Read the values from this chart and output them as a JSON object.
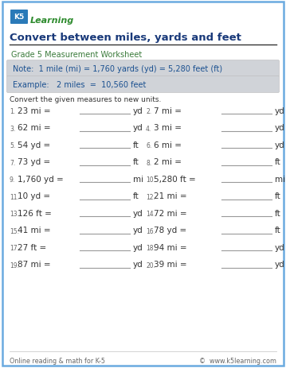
{
  "title": "Convert between miles, yards and feet",
  "subtitle": "Grade 5 Measurement Worksheet",
  "note": "Note:  1 mile (mi) = 1,760 yards (yd) = 5,280 feet (ft)",
  "example": "Example:   2 miles  =  10,560 feet",
  "instruction": "Convert the given measures to new units.",
  "problems": [
    {
      "num": "1.",
      "text": "23 mi =",
      "unit": "yd"
    },
    {
      "num": "2.",
      "text": "7 mi =",
      "unit": "yd"
    },
    {
      "num": "3.",
      "text": "62 mi =",
      "unit": "yd"
    },
    {
      "num": "4.",
      "text": "3 mi =",
      "unit": "yd"
    },
    {
      "num": "5.",
      "text": "54 yd =",
      "unit": "ft"
    },
    {
      "num": "6.",
      "text": "6 mi =",
      "unit": "yd"
    },
    {
      "num": "7.",
      "text": "73 yd =",
      "unit": "ft"
    },
    {
      "num": "8.",
      "text": "2 mi =",
      "unit": "ft"
    },
    {
      "num": "9.",
      "text": "1,760 yd =",
      "unit": "mi"
    },
    {
      "num": "10.",
      "text": "5,280 ft =",
      "unit": "mi"
    },
    {
      "num": "11.",
      "text": "10 yd =",
      "unit": "ft"
    },
    {
      "num": "12.",
      "text": "21 mi =",
      "unit": "ft"
    },
    {
      "num": "13.",
      "text": "126 ft =",
      "unit": "yd"
    },
    {
      "num": "14.",
      "text": "72 mi =",
      "unit": "ft"
    },
    {
      "num": "15.",
      "text": "41 mi =",
      "unit": "yd"
    },
    {
      "num": "16.",
      "text": "78 yd =",
      "unit": "ft"
    },
    {
      "num": "17.",
      "text": "27 ft =",
      "unit": "yd"
    },
    {
      "num": "18.",
      "text": "94 mi =",
      "unit": "yd"
    },
    {
      "num": "19.",
      "text": "87 mi =",
      "unit": "yd"
    },
    {
      "num": "20.",
      "text": "39 mi =",
      "unit": "yd"
    }
  ],
  "footer_left": "Online reading & math for K-5",
  "footer_right": "©  www.k5learning.com",
  "title_color": "#1a3a7a",
  "subtitle_color": "#3a7a3a",
  "note_color": "#1a5090",
  "example_color": "#1a5090",
  "border_color": "#6aaae0",
  "note_bg": "#d0d3d8",
  "example_bg": "#d0d3d8",
  "line_color": "#999999",
  "text_color": "#333333",
  "num_color": "#666666",
  "footer_color": "#666666",
  "bg_color": "#ffffff",
  "title_line_color": "#333333"
}
